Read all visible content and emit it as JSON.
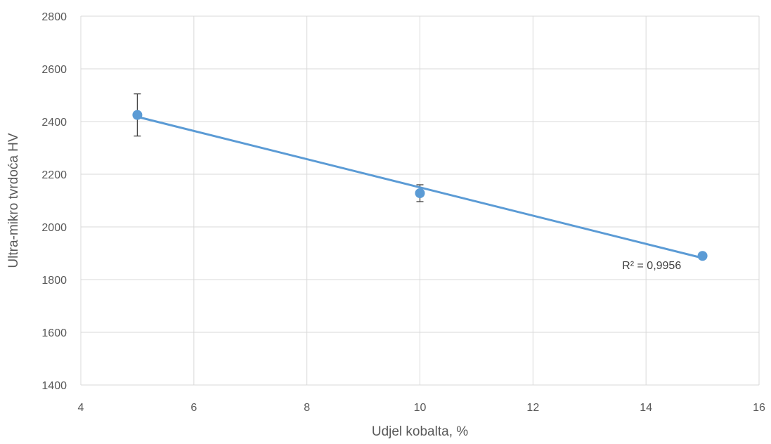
{
  "chart_data": {
    "type": "scatter",
    "title": "",
    "xlabel": "Udjel kobalta, %",
    "ylabel": "Ultra-mikro tvrdoća HV",
    "xlim": [
      4,
      16
    ],
    "ylim": [
      1400,
      2800
    ],
    "x_ticks": [
      "4",
      "6",
      "8",
      "10",
      "12",
      "14",
      "16"
    ],
    "y_ticks": [
      "1400",
      "1600",
      "1800",
      "2000",
      "2200",
      "2400",
      "2600",
      "2800"
    ],
    "grid": true,
    "legend": "none",
    "series": [
      {
        "x": [
          5,
          10,
          15
        ],
        "y": [
          2425,
          2128,
          1890
        ],
        "error": [
          80,
          32,
          0
        ],
        "color": "#5B9BD5"
      }
    ],
    "trendline": {
      "type": "linear",
      "x": [
        5,
        15
      ],
      "y": [
        2418,
        1882
      ],
      "color": "#5B9BD5",
      "r2_label": "R² = 0,9956"
    }
  }
}
